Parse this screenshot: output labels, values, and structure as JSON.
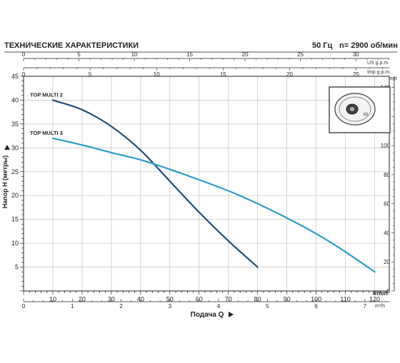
{
  "header": {
    "title": "ТЕХНИЧЕСКИЕ ХАРАКТЕРИСТИКИ",
    "freq": "50 Гц",
    "speed": "n= 2900 об/мин"
  },
  "axes": {
    "x_bottom_label": "Подача Q",
    "x_bottom_unit": "l/min",
    "x_m3h_unit": "m³/h",
    "y_left_label": "Напор H (метры)",
    "y_right_unit": "feet",
    "x_top_us_unit": "US g.p.m.",
    "x_top_imp_unit": "Imp g.p.m."
  },
  "colors": {
    "multi2": "#1f4e79",
    "multi3": "#2e9bc8",
    "grid": "#c9c9c9",
    "title_rule": "#8a8a8a"
  },
  "icons": {
    "pump": "pump-impeller-icon",
    "arrow": "triangle-arrow-icon"
  },
  "chart_data": {
    "type": "line",
    "title": "ТЕХНИЧЕСКИЕ ХАРАКТЕРИСТИКИ",
    "xlabel": "Подача Q",
    "ylabel": "Напор H (метры)",
    "xlim": [
      0,
      125
    ],
    "ylim": [
      0,
      45
    ],
    "grid": true,
    "x_ticks": [
      10,
      20,
      30,
      40,
      50,
      60,
      70,
      80,
      90,
      100,
      110,
      120
    ],
    "y_ticks": [
      5,
      10,
      15,
      20,
      25,
      30,
      35,
      40,
      45
    ],
    "secondary_axes": {
      "m3h": {
        "unit": "m³/h",
        "ticks": [
          0,
          1,
          2,
          3,
          4,
          5,
          6,
          7
        ]
      },
      "us_gpm": {
        "unit": "US g.p.m.",
        "ticks": [
          0,
          5,
          10,
          15,
          20,
          25,
          30
        ]
      },
      "imp_gpm": {
        "unit": "Imp g.p.m.",
        "ticks": [
          0,
          5,
          10,
          15,
          20,
          25
        ]
      },
      "feet": {
        "unit": "feet",
        "ticks": [
          0,
          20,
          40,
          60,
          80,
          100,
          120,
          140
        ]
      }
    },
    "series": [
      {
        "name": "TOP MULTI 2",
        "x": [
          10,
          20,
          30,
          40,
          50,
          60,
          70,
          80
        ],
        "y": [
          40,
          38,
          34.5,
          29.5,
          23,
          16.5,
          10.5,
          5
        ]
      },
      {
        "name": "TOP MULTI 3",
        "x": [
          10,
          20,
          30,
          40,
          50,
          60,
          70,
          80,
          90,
          100,
          110,
          120
        ],
        "y": [
          32,
          30.6,
          29,
          27.5,
          25.5,
          23.3,
          21,
          18.3,
          15.3,
          12,
          8.2,
          4
        ]
      }
    ]
  }
}
